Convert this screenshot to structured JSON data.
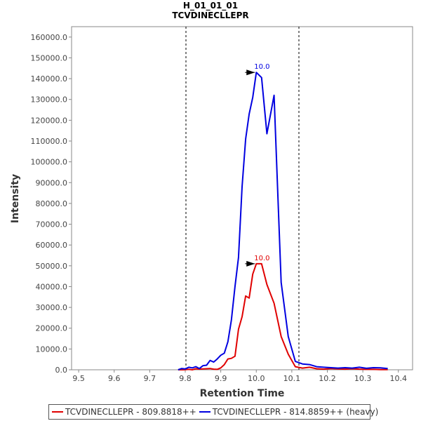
{
  "chart_data": {
    "type": "line",
    "title": "H_01_01_01",
    "subtitle": "TCVDINECLLEPR",
    "xlabel": "Retention Time",
    "ylabel": "Intensity",
    "xlim": [
      9.48,
      10.44
    ],
    "ylim": [
      0,
      165000
    ],
    "x_ticks": [
      "9.5",
      "9.6",
      "9.7",
      "9.8",
      "9.9",
      "10.0",
      "10.1",
      "10.2",
      "10.3",
      "10.4"
    ],
    "y_ticks": [
      "0.0",
      "10000.0",
      "20000.0",
      "30000.0",
      "40000.0",
      "50000.0",
      "60000.0",
      "70000.0",
      "80000.0",
      "90000.0",
      "100000.0",
      "110000.0",
      "120000.0",
      "130000.0",
      "140000.0",
      "150000.0",
      "160000.0"
    ],
    "grid": false,
    "legend_position": "bottom",
    "integration_bounds": [
      9.802,
      10.12
    ],
    "series": [
      {
        "name": "TCVDINECLLEPR - 809.8818++",
        "color": "#e00000",
        "x": [
          9.78,
          9.795,
          9.81,
          9.82,
          9.83,
          9.84,
          9.85,
          9.86,
          9.87,
          9.88,
          9.89,
          9.9,
          9.91,
          9.92,
          9.93,
          9.94,
          9.95,
          9.96,
          9.97,
          9.98,
          9.99,
          10.0,
          10.015,
          10.03,
          10.05,
          10.07,
          10.09,
          10.11,
          10.13,
          10.15,
          10.17,
          10.19,
          10.21,
          10.23,
          10.25,
          10.27,
          10.29,
          10.31,
          10.33,
          10.35,
          10.37
        ],
        "values": [
          0,
          0,
          200,
          0,
          500,
          300,
          400,
          500,
          600,
          300,
          200,
          900,
          2500,
          5200,
          5500,
          6500,
          19500,
          25500,
          35500,
          34500,
          46000,
          51000,
          51000,
          41000,
          32000,
          16000,
          7500,
          1500,
          800,
          1200,
          500,
          300,
          600,
          400,
          300,
          500,
          300,
          200,
          200,
          100,
          100
        ],
        "peak_label": "10.0",
        "peak_x": 10.0,
        "peak_y": 51000
      },
      {
        "name": "TCVDINECLLEPR - 814.8859++ (heavy)",
        "color": "#0000e0",
        "x": [
          9.78,
          9.79,
          9.8,
          9.81,
          9.82,
          9.83,
          9.84,
          9.85,
          9.86,
          9.87,
          9.88,
          9.89,
          9.9,
          9.91,
          9.92,
          9.93,
          9.94,
          9.95,
          9.96,
          9.97,
          9.98,
          9.99,
          10.0,
          10.015,
          10.03,
          10.05,
          10.07,
          10.09,
          10.11,
          10.13,
          10.15,
          10.17,
          10.19,
          10.21,
          10.23,
          10.25,
          10.27,
          10.29,
          10.31,
          10.33,
          10.35,
          10.37
        ],
        "values": [
          0,
          600,
          400,
          1200,
          900,
          1500,
          600,
          2000,
          2200,
          4500,
          3700,
          5200,
          7000,
          8000,
          13500,
          24000,
          40000,
          54000,
          88000,
          111000,
          123000,
          131000,
          143000,
          140500,
          113500,
          132000,
          42000,
          16000,
          4000,
          2800,
          2500,
          1500,
          1200,
          1000,
          800,
          1000,
          800,
          1200,
          700,
          1000,
          900,
          600
        ],
        "peak_label": "10.0",
        "peak_x": 10.0,
        "peak_y": 143000
      }
    ]
  }
}
